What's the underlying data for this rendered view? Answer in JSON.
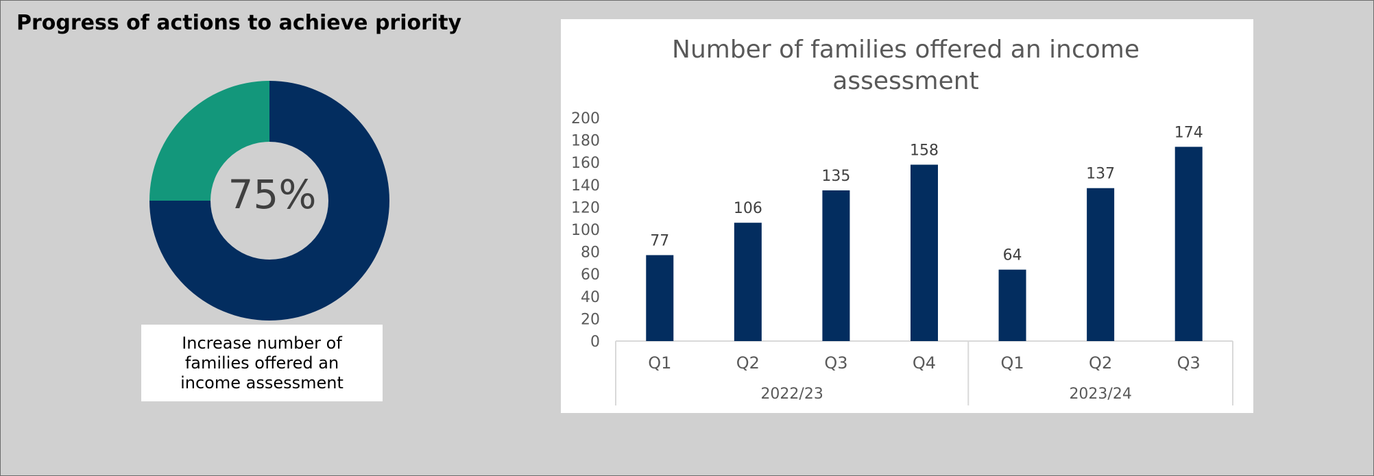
{
  "panel": {
    "heading": "Progress of actions to achieve priority"
  },
  "progress": {
    "percent_label": "75%",
    "value": 0.75,
    "caption": "Increase number of families offered an income assessment",
    "colors": {
      "complete": "#032d5f",
      "remaining": "#13977b",
      "center": "#d0d0d0"
    }
  },
  "chart_data": {
    "type": "bar",
    "title": "Number of families offered an income assessment",
    "title_lines": [
      "Number of families offered an income",
      "assessment"
    ],
    "categories": [
      "Q1",
      "Q2",
      "Q3",
      "Q4",
      "Q1",
      "Q2",
      "Q3"
    ],
    "groups": [
      {
        "label": "2022/23",
        "count": 4
      },
      {
        "label": "2023/24",
        "count": 3
      }
    ],
    "values": [
      77,
      106,
      135,
      158,
      64,
      137,
      174
    ],
    "ylim": [
      0,
      200
    ],
    "yticks": [
      0,
      20,
      40,
      60,
      80,
      100,
      120,
      140,
      160,
      180,
      200
    ],
    "gridlines": false,
    "data_labels": true,
    "bar_color": "#032d5f",
    "xlabel": "",
    "ylabel": ""
  }
}
